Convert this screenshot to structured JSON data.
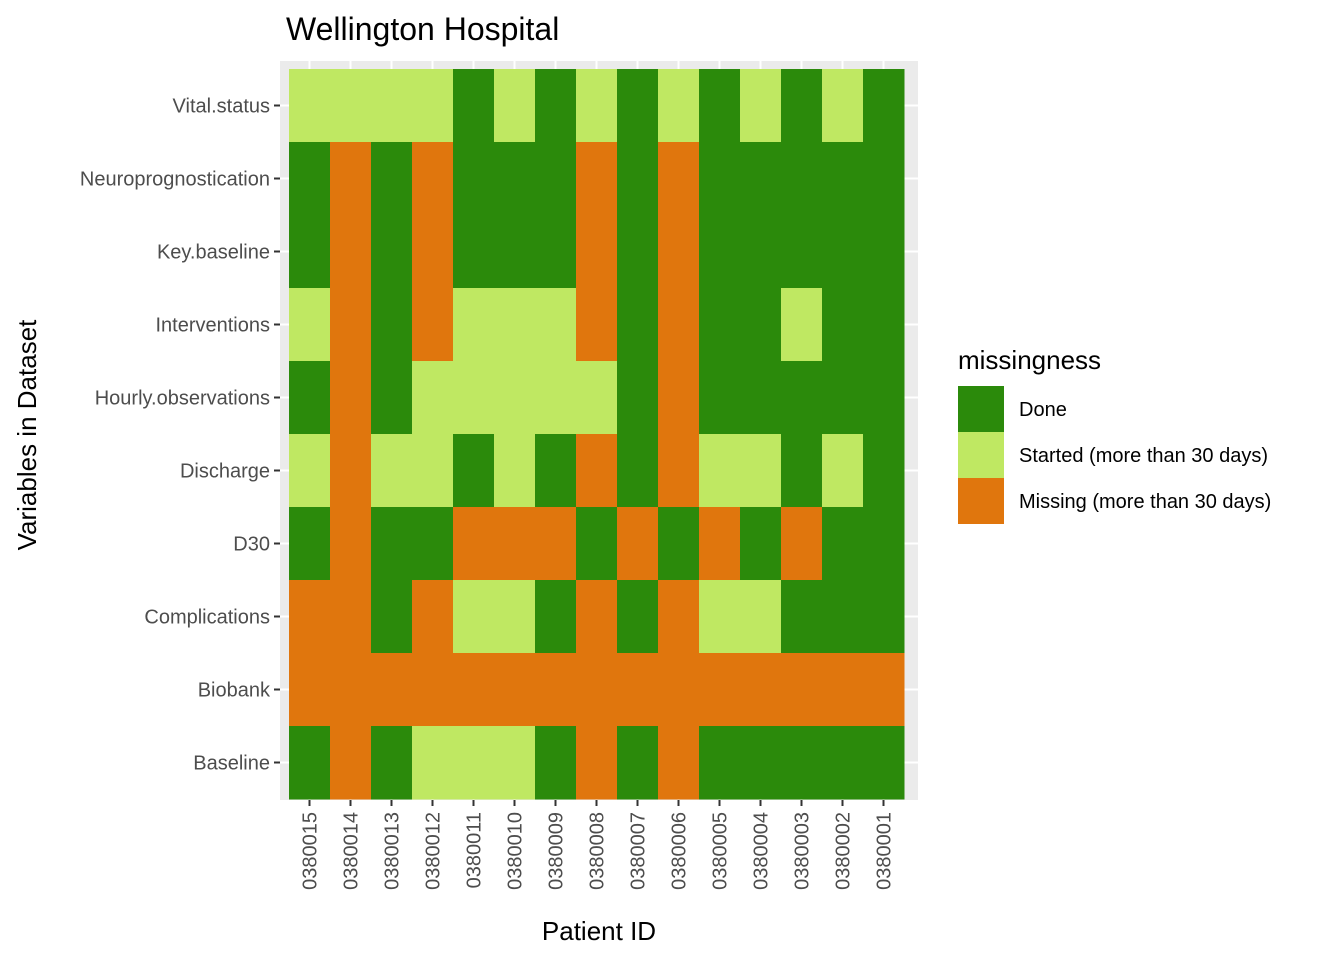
{
  "chart_data": {
    "type": "heatmap",
    "title": "Wellington Hospital",
    "xlabel": "Patient ID",
    "ylabel": "Variables in Dataset",
    "x_categories": [
      "0380015",
      "0380014",
      "0380013",
      "0380012",
      "0380011",
      "0380010",
      "0380009",
      "0380008",
      "0380007",
      "0380006",
      "0380005",
      "0380004",
      "0380003",
      "0380002",
      "0380001"
    ],
    "y_categories": [
      "Vital.status",
      "Neuroprognostication",
      "Key.baseline",
      "Interventions",
      "Hourly.observations",
      "Discharge",
      "D30",
      "Complications",
      "Biobank",
      "Baseline"
    ],
    "values": [
      [
        "Started",
        "Started",
        "Started",
        "Started",
        "Done",
        "Started",
        "Done",
        "Started",
        "Done",
        "Started",
        "Done",
        "Started",
        "Done",
        "Started",
        "Done"
      ],
      [
        "Done",
        "Missing",
        "Done",
        "Missing",
        "Done",
        "Done",
        "Done",
        "Missing",
        "Done",
        "Missing",
        "Done",
        "Done",
        "Done",
        "Done",
        "Done"
      ],
      [
        "Done",
        "Missing",
        "Done",
        "Missing",
        "Done",
        "Done",
        "Done",
        "Missing",
        "Done",
        "Missing",
        "Done",
        "Done",
        "Done",
        "Done",
        "Done"
      ],
      [
        "Started",
        "Missing",
        "Done",
        "Missing",
        "Started",
        "Started",
        "Started",
        "Missing",
        "Done",
        "Missing",
        "Done",
        "Done",
        "Started",
        "Done",
        "Done"
      ],
      [
        "Done",
        "Missing",
        "Done",
        "Started",
        "Started",
        "Started",
        "Started",
        "Started",
        "Done",
        "Missing",
        "Done",
        "Done",
        "Done",
        "Done",
        "Done"
      ],
      [
        "Started",
        "Missing",
        "Started",
        "Started",
        "Done",
        "Started",
        "Done",
        "Missing",
        "Done",
        "Missing",
        "Started",
        "Started",
        "Done",
        "Started",
        "Done"
      ],
      [
        "Done",
        "Missing",
        "Done",
        "Done",
        "Missing",
        "Missing",
        "Missing",
        "Done",
        "Missing",
        "Done",
        "Missing",
        "Done",
        "Missing",
        "Done",
        "Done"
      ],
      [
        "Missing",
        "Missing",
        "Done",
        "Missing",
        "Started",
        "Started",
        "Done",
        "Missing",
        "Done",
        "Missing",
        "Started",
        "Started",
        "Done",
        "Done",
        "Done"
      ],
      [
        "Missing",
        "Missing",
        "Missing",
        "Missing",
        "Missing",
        "Missing",
        "Missing",
        "Missing",
        "Missing",
        "Missing",
        "Missing",
        "Missing",
        "Missing",
        "Missing",
        "Missing"
      ],
      [
        "Done",
        "Missing",
        "Done",
        "Started",
        "Started",
        "Started",
        "Done",
        "Missing",
        "Done",
        "Missing",
        "Done",
        "Done",
        "Done",
        "Done",
        "Done"
      ]
    ],
    "legend": {
      "title": "missingness",
      "placement": "right",
      "entries": [
        {
          "key": "Done",
          "label": "Done",
          "color": "#2b8a0b"
        },
        {
          "key": "Started",
          "label": "Started (more than 30 days)",
          "color": "#bfe862"
        },
        {
          "key": "Missing",
          "label": "Missing (more than 30 days)",
          "color": "#e0760d"
        }
      ]
    },
    "panel_background": "#ebebeb",
    "grid": true
  }
}
